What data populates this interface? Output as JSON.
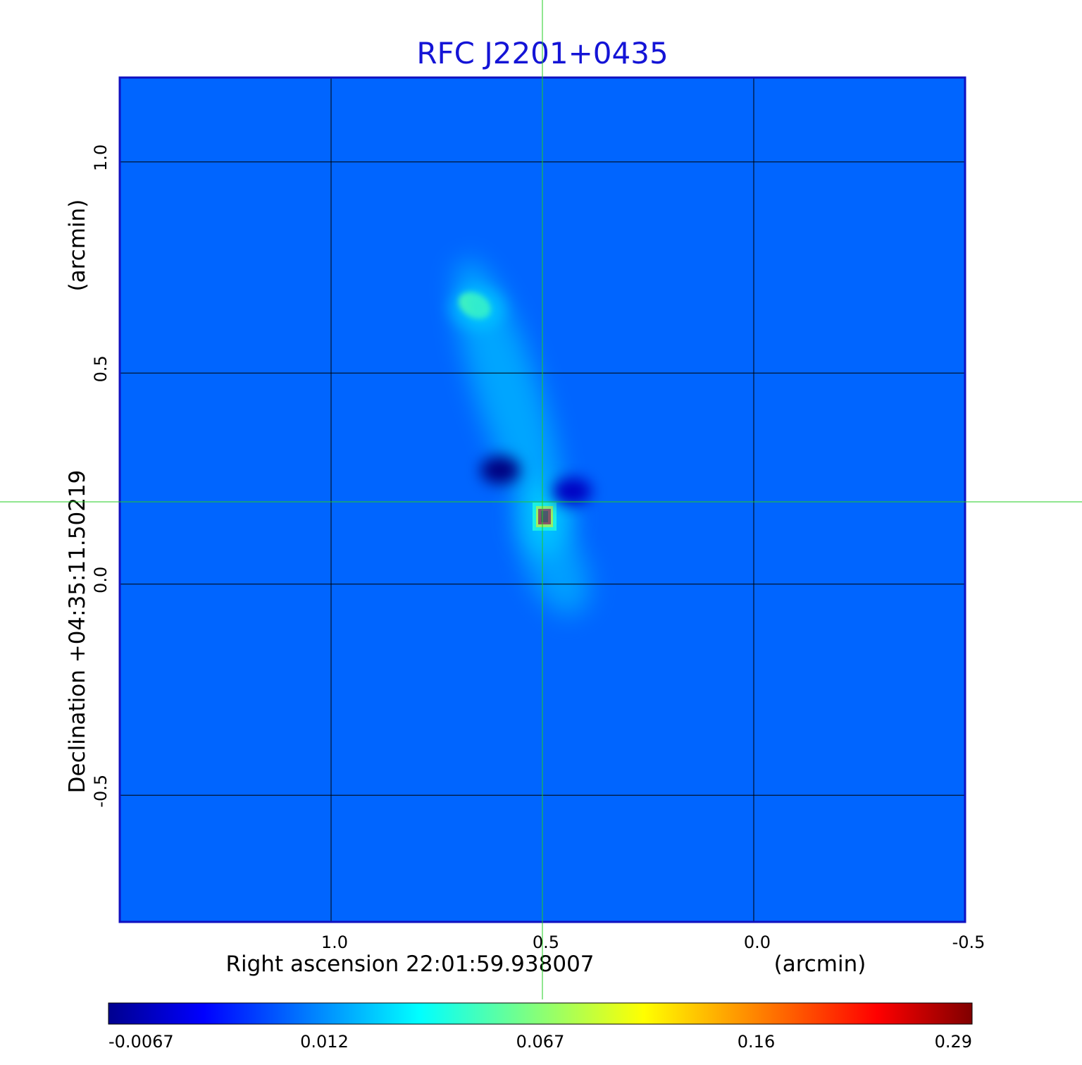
{
  "chart_data": {
    "type": "heatmap",
    "title": "RFC J2201+0435",
    "xlabel": "Right ascension  22:01:59.938007",
    "xunit": "(arcmin)",
    "ylabel": "Declination  +04:35:11.50219",
    "yunit": "(arcmin)",
    "xlim": [
      1.5,
      -0.5
    ],
    "ylim": [
      -0.8,
      1.2
    ],
    "x_ticks": [
      "1.0",
      "0.5",
      "0.0",
      "-0.5"
    ],
    "x_tick_values": [
      1.0,
      0.5,
      0.0,
      -0.5
    ],
    "y_ticks": [
      "1.0",
      "0.5",
      "0.0",
      "-0.5"
    ],
    "y_tick_values": [
      1.0,
      0.5,
      0.0,
      -0.5
    ],
    "grid": true,
    "crosshair": {
      "x": 0.5,
      "y": 0.195,
      "color": "#22cc22"
    },
    "colormap": "jet",
    "colorbar_ticks": [
      "-0.0067",
      "0.012",
      "0.067",
      "0.16",
      "0.29"
    ],
    "colorbar_range": [
      -0.0067,
      0.29
    ],
    "background_level": 0.004,
    "features": [
      {
        "name": "core",
        "x": 0.495,
        "y": 0.16,
        "peak": 0.29
      },
      {
        "name": "jet-knot",
        "x": 0.66,
        "y": 0.66,
        "peak": 0.05
      },
      {
        "name": "jet-ridge",
        "x": 0.58,
        "y": 0.45,
        "peak": 0.02
      },
      {
        "name": "counterjet",
        "x": 0.44,
        "y": 0.05,
        "peak": 0.018
      },
      {
        "name": "negative-sidelobe-1",
        "x": 0.6,
        "y": 0.27,
        "peak": -0.0067
      },
      {
        "name": "negative-sidelobe-2",
        "x": 0.43,
        "y": 0.22,
        "peak": -0.006
      }
    ]
  }
}
